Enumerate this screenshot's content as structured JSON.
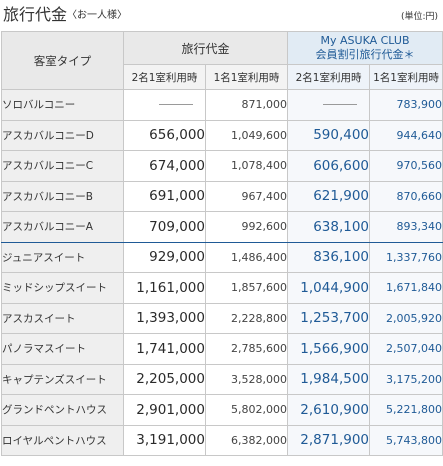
{
  "header": {
    "title": "旅行代金",
    "subtitle": "〈お一人様〉",
    "unit": "(単位:円)"
  },
  "table": {
    "col_room": "客室タイプ",
    "col_regular": "旅行代金",
    "col_member_line1": "My ASUKA CLUB",
    "col_member_line2": "会員割引旅行代金＊",
    "sub_two": "2名1室利用時",
    "sub_one": "1名1室利用時",
    "sub_two_m": "2名1室利用時",
    "sub_one_m": "1名1室利用時",
    "rows": [
      {
        "room": "ソロバルコニー",
        "two": "—",
        "one": "871,000",
        "m_two": "—",
        "m_one": "783,900"
      },
      {
        "room": "アスカバルコニーD",
        "two": "656,000",
        "one": "1,049,600",
        "m_two": "590,400",
        "m_one": "944,640"
      },
      {
        "room": "アスカバルコニーC",
        "two": "674,000",
        "one": "1,078,400",
        "m_two": "606,600",
        "m_one": "970,560"
      },
      {
        "room": "アスカバルコニーB",
        "two": "691,000",
        "one": "967,400",
        "m_two": "621,900",
        "m_one": "870,660"
      },
      {
        "room": "アスカバルコニーA",
        "two": "709,000",
        "one": "992,600",
        "m_two": "638,100",
        "m_one": "893,340"
      },
      {
        "room": "ジュニアスイート",
        "two": "929,000",
        "one": "1,486,400",
        "m_two": "836,100",
        "m_one": "1,337,760"
      },
      {
        "room": "ミッドシップスイート",
        "two": "1,161,000",
        "one": "1,857,600",
        "m_two": "1,044,900",
        "m_one": "1,671,840"
      },
      {
        "room": "アスカスイート",
        "two": "1,393,000",
        "one": "2,228,800",
        "m_two": "1,253,700",
        "m_one": "2,005,920"
      },
      {
        "room": "パノラマスイート",
        "two": "1,741,000",
        "one": "2,785,600",
        "m_two": "1,566,900",
        "m_one": "2,507,040"
      },
      {
        "room": "キャプテンズスイート",
        "two": "2,205,000",
        "one": "3,528,000",
        "m_two": "1,984,500",
        "m_one": "3,175,200"
      },
      {
        "room": "グランドペントハウス",
        "two": "2,901,000",
        "one": "5,802,000",
        "m_two": "2,610,900",
        "m_one": "5,221,800"
      },
      {
        "room": "ロイヤルペントハウス",
        "two": "3,191,000",
        "one": "6,382,000",
        "m_two": "2,871,900",
        "m_one": "5,743,800"
      }
    ]
  },
  "colors": {
    "member_accent": "#1f5a96",
    "header_bg": "#e9e9e9",
    "room_bg": "#efefef"
  }
}
